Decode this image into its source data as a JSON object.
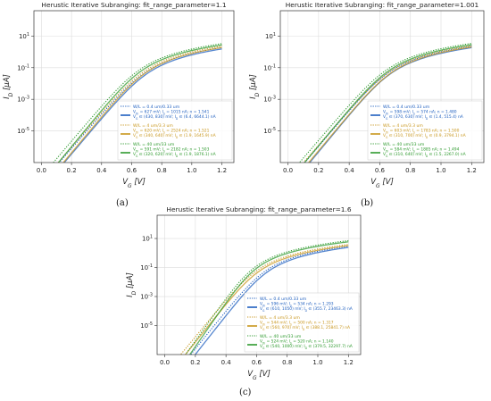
{
  "chart_data": [
    {
      "id": "a",
      "type": "line",
      "title": "Herustic Iterative Subranging: fit_range_parameter=1.1",
      "xlabel": "V_G [V]",
      "ylabel": "I_D [μA]",
      "yscale": "log",
      "xlim": [
        -0.05,
        1.28
      ],
      "ylim": [
        1e-07,
        400
      ],
      "xticks": [
        "0.0",
        "0.2",
        "0.4",
        "0.6",
        "0.8",
        "1.0",
        "1.2"
      ],
      "xtick_values": [
        0.0,
        0.2,
        0.4,
        0.6,
        0.8,
        1.0,
        1.2
      ],
      "yticks": [
        "10^1",
        "10^-1",
        "10^-3",
        "10^-5"
      ],
      "ytick_exponents": [
        1,
        -1,
        -3,
        -5
      ],
      "grid": true,
      "legend": "lower-right",
      "series": [
        {
          "label": "W/L = 0.4 um/0.33 um",
          "style": "dotted",
          "color": "#1f5fbf",
          "vth": 0.627,
          "n": 1.541,
          "isat": 30,
          "lo": "",
          "info": [
            "V_th = 627 mV; I_S = 1015 nA; n = 1.541",
            "V_G ∈ (430, 830) mV; I_D ∈ (6.4, 6644.1) nA"
          ]
        },
        {
          "label": "W/L = 4 um/3.3 um",
          "style": "dotted",
          "color": "#c8961c",
          "vth": 0.62,
          "n": 1.521,
          "isat": 35,
          "lo": "",
          "info": [
            "V_th = 620 mV; I_S = 2524 nA; n = 1.521",
            "V_G ∈ (340, 640) mV; I_D ∈ (1.9, 1645.9) nA"
          ]
        },
        {
          "label": "W/L = 40 um/33 um",
          "style": "dotted",
          "color": "#2e9a2e",
          "vth": 0.591,
          "n": 1.503,
          "isat": 45,
          "lo": "",
          "info": [
            "V_th = 591 mV; I_S = 2182 nA; n = 1.503",
            "V_G ∈ (320, 620) mV; I_D ∈ (1.9, 1876.1) nA"
          ]
        }
      ]
    },
    {
      "id": "b",
      "type": "line",
      "title": "Herustic Iterative Subranging: fit_range_parameter=1.001",
      "xlabel": "V_G [V]",
      "ylabel": "I_D [μA]",
      "yscale": "log",
      "xlim": [
        -0.05,
        1.28
      ],
      "ylim": [
        1e-07,
        400
      ],
      "xticks": [
        "0.0",
        "0.2",
        "0.4",
        "0.6",
        "0.8",
        "1.0",
        "1.2"
      ],
      "xtick_values": [
        0.0,
        0.2,
        0.4,
        0.6,
        0.8,
        1.0,
        1.2
      ],
      "yticks": [
        "10^1",
        "10^-1",
        "10^-3",
        "10^-5"
      ],
      "ytick_exponents": [
        1,
        -1,
        -3,
        -5
      ],
      "grid": true,
      "legend": "lower-right",
      "series": [
        {
          "label": "W/L = 0.4 um/0.33 um",
          "style": "dotted",
          "color": "#1f5fbf",
          "vth": 0.598,
          "n": 1.48,
          "isat": 30,
          "lo": "",
          "info": [
            "V_th = 598 mV; I_S = 574 nA; n = 1.480",
            "V_G ∈ (370, 630) mV; I_D ∈ (1.4, 515.4) nA"
          ]
        },
        {
          "label": "W/L = 4 um/3.3 um",
          "style": "dotted",
          "color": "#c8961c",
          "vth": 0.603,
          "n": 1.5,
          "isat": 35,
          "lo": "",
          "info": [
            "V_th = 603 mV; I_S = 1783 nA; n = 1.500",
            "V_G ∈ (310, 700) mV; I_D ∈ (0.9, 3794.1) nA"
          ]
        },
        {
          "label": "W/L = 40 um/33 um",
          "style": "dotted",
          "color": "#2e9a2e",
          "vth": 0.584,
          "n": 1.494,
          "isat": 45,
          "lo": "",
          "info": [
            "V_th = 584 mV; I_S = 1885 nA; n = 1.494",
            "V_G ∈ (310, 640) mV; I_D ∈ (1.5, 2267.0) nA"
          ]
        }
      ]
    },
    {
      "id": "c",
      "type": "line",
      "title": "Herustic Iterative Subranging: fit_range_parameter=1.6",
      "xlabel": "V_G [V]",
      "ylabel": "I_D [μA]",
      "yscale": "log",
      "xlim": [
        -0.05,
        1.28
      ],
      "ylim": [
        1e-07,
        400
      ],
      "xticks": [
        "0.0",
        "0.2",
        "0.4",
        "0.6",
        "0.8",
        "1.0",
        "1.2"
      ],
      "xtick_values": [
        0.0,
        0.2,
        0.4,
        0.6,
        0.8,
        1.0,
        1.2
      ],
      "yticks": [
        "10^1",
        "10^-1",
        "10^-3",
        "10^-5"
      ],
      "ytick_exponents": [
        1,
        -1,
        -3,
        -5
      ],
      "grid": true,
      "legend": "lower-right",
      "series": [
        {
          "label": "W/L = 0.4 um/0.33 um",
          "style": "dotted",
          "color": "#1f5fbf",
          "vth": 0.596,
          "n": 1.293,
          "isat": 30,
          "lo": "",
          "info": [
            "V_th = 596 mV; I_S = 534 nA; n = 1.293",
            "V_G ∈ (610, 1050) mV; I_D ∈ (355.7, 23463.3) nA"
          ]
        },
        {
          "label": "W/L = 4 um/3.3 um",
          "style": "dotted",
          "color": "#c8961c",
          "vth": 0.544,
          "n": 1.317,
          "isat": 35,
          "lo": "",
          "info": [
            "V_th = 544 mV; I_S = 500 nA; n = 1.317",
            "V_G ∈ (560, 970) mV; I_D ∈ (388.1, 25841.7) nA"
          ]
        },
        {
          "label": "W/L = 40 um/33 um",
          "style": "dotted",
          "color": "#2e9a2e",
          "vth": 0.524,
          "n": 1.14,
          "isat": 45,
          "lo": "",
          "info": [
            "V_th = 524 mV; I_S = 520 nA; n = 1.140",
            "V_G ∈ (540, 1000) mV; I_D ∈ (379.5, 32297.7) nA"
          ]
        }
      ]
    }
  ],
  "captions": [
    "(a)",
    "(b)",
    "(c)"
  ]
}
